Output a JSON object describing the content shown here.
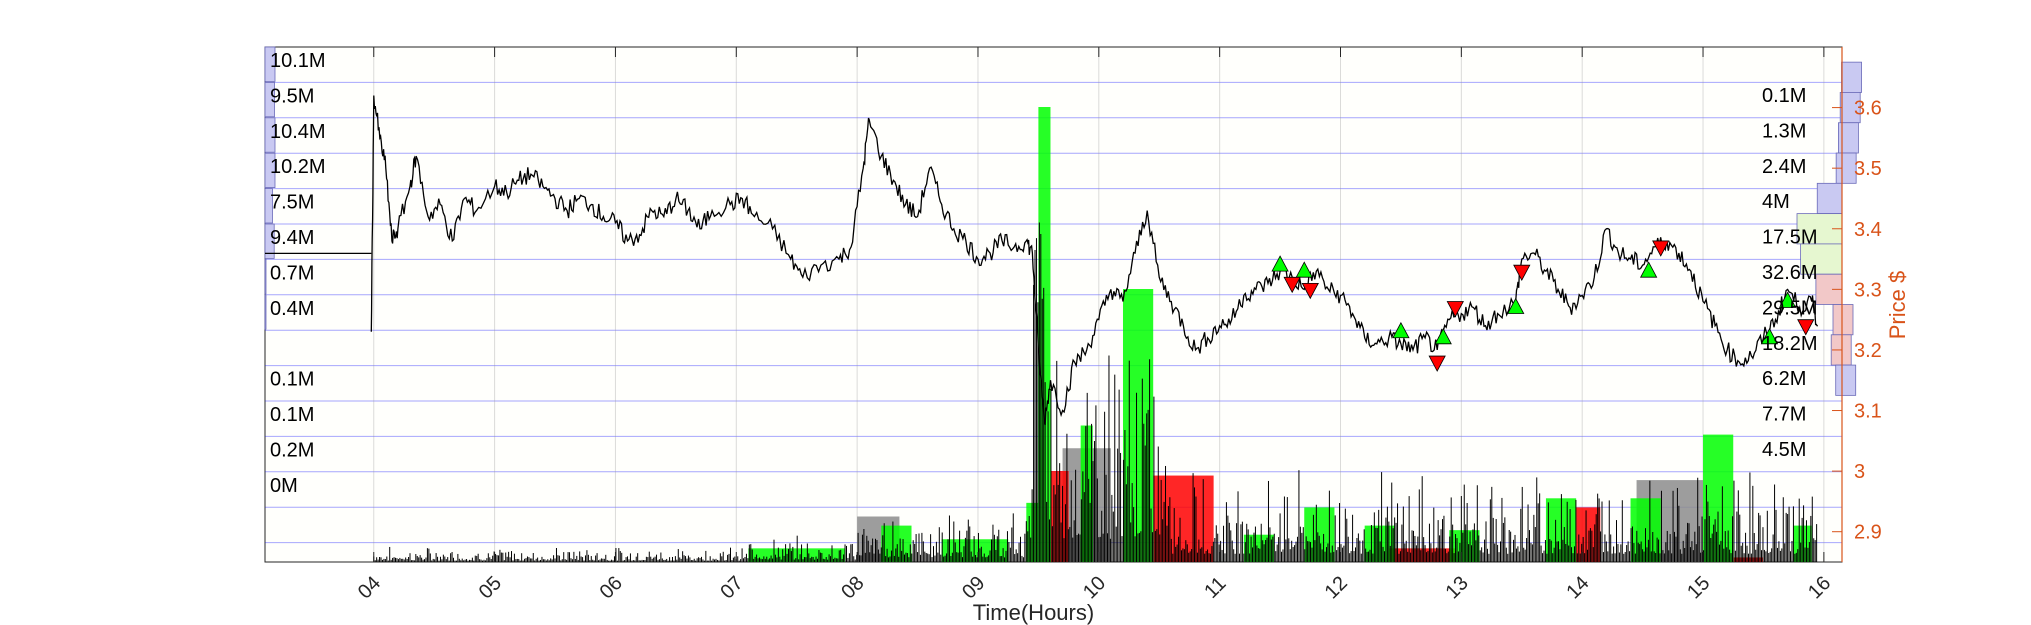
{
  "chart_data": {
    "type": "line",
    "xlabel": "Time(Hours)",
    "ylabel": "Price $",
    "x_range": [
      3.1,
      16.15
    ],
    "x_ticks": [
      "04",
      "05",
      "06",
      "07",
      "08",
      "09",
      "10",
      "11",
      "12",
      "13",
      "14",
      "15",
      "16"
    ],
    "ylim": [
      2.85,
      3.7
    ],
    "y_ticks": [
      2.9,
      3,
      3.1,
      3.2,
      3.3,
      3.4,
      3.5,
      3.6
    ],
    "grid": true,
    "colors": {
      "price": "#000000",
      "axis_right": "#d95319",
      "buy": "#00ff00",
      "sell": "#ff0000",
      "grid": "#0000ff"
    },
    "left_volume_labels": [
      "10.1M",
      "9.5M",
      "10.4M",
      "10.2M",
      "7.5M",
      "9.4M",
      "0.7M",
      "0.4M",
      "",
      "0.1M",
      "0.1M",
      "0.2M",
      "0M"
    ],
    "right_volume_labels": [
      "0.1M",
      "1.3M",
      "2.4M",
      "4M",
      "17.5M",
      "32.6M",
      "29.5M",
      "18.2M",
      "6.2M",
      "7.7M",
      "4.5M"
    ],
    "price_series": {
      "name": "Price",
      "points": [
        [
          3.98,
          3.23
        ],
        [
          4.0,
          3.62
        ],
        [
          4.05,
          3.55
        ],
        [
          4.1,
          3.5
        ],
        [
          4.15,
          3.38
        ],
        [
          4.2,
          3.4
        ],
        [
          4.3,
          3.47
        ],
        [
          4.35,
          3.52
        ],
        [
          4.45,
          3.42
        ],
        [
          4.55,
          3.44
        ],
        [
          4.65,
          3.38
        ],
        [
          4.75,
          3.45
        ],
        [
          4.85,
          3.43
        ],
        [
          5.0,
          3.47
        ],
        [
          5.1,
          3.46
        ],
        [
          5.2,
          3.48
        ],
        [
          5.3,
          3.49
        ],
        [
          5.4,
          3.47
        ],
        [
          5.5,
          3.45
        ],
        [
          5.6,
          3.43
        ],
        [
          5.7,
          3.45
        ],
        [
          5.8,
          3.44
        ],
        [
          5.9,
          3.42
        ],
        [
          6.0,
          3.41
        ],
        [
          6.1,
          3.38
        ],
        [
          6.2,
          3.39
        ],
        [
          6.3,
          3.43
        ],
        [
          6.4,
          3.42
        ],
        [
          6.5,
          3.45
        ],
        [
          6.6,
          3.43
        ],
        [
          6.7,
          3.4
        ],
        [
          6.8,
          3.43
        ],
        [
          6.95,
          3.44
        ],
        [
          7.05,
          3.45
        ],
        [
          7.15,
          3.42
        ],
        [
          7.3,
          3.4
        ],
        [
          7.45,
          3.35
        ],
        [
          7.55,
          3.32
        ],
        [
          7.7,
          3.34
        ],
        [
          7.85,
          3.35
        ],
        [
          7.95,
          3.37
        ],
        [
          8.05,
          3.5
        ],
        [
          8.1,
          3.58
        ],
        [
          8.2,
          3.52
        ],
        [
          8.3,
          3.48
        ],
        [
          8.4,
          3.44
        ],
        [
          8.5,
          3.42
        ],
        [
          8.6,
          3.5
        ],
        [
          8.7,
          3.44
        ],
        [
          8.8,
          3.4
        ],
        [
          8.9,
          3.38
        ],
        [
          9.0,
          3.35
        ],
        [
          9.1,
          3.36
        ],
        [
          9.2,
          3.38
        ],
        [
          9.3,
          3.37
        ],
        [
          9.4,
          3.38
        ],
        [
          9.45,
          3.36
        ],
        [
          9.5,
          3.2
        ],
        [
          9.55,
          3.08
        ],
        [
          9.6,
          3.15
        ],
        [
          9.7,
          3.1
        ],
        [
          9.8,
          3.18
        ],
        [
          9.9,
          3.2
        ],
        [
          10.0,
          3.25
        ],
        [
          10.1,
          3.3
        ],
        [
          10.2,
          3.28
        ],
        [
          10.3,
          3.36
        ],
        [
          10.4,
          3.43
        ],
        [
          10.5,
          3.32
        ],
        [
          10.6,
          3.28
        ],
        [
          10.7,
          3.24
        ],
        [
          10.8,
          3.2
        ],
        [
          10.9,
          3.22
        ],
        [
          11.0,
          3.24
        ],
        [
          11.1,
          3.25
        ],
        [
          11.2,
          3.29
        ],
        [
          11.3,
          3.3
        ],
        [
          11.4,
          3.31
        ],
        [
          11.5,
          3.33
        ],
        [
          11.6,
          3.32
        ],
        [
          11.7,
          3.3
        ],
        [
          11.8,
          3.33
        ],
        [
          11.9,
          3.3
        ],
        [
          12.0,
          3.29
        ],
        [
          12.1,
          3.26
        ],
        [
          12.2,
          3.22
        ],
        [
          12.3,
          3.21
        ],
        [
          12.4,
          3.22
        ],
        [
          12.5,
          3.21
        ],
        [
          12.6,
          3.2
        ],
        [
          12.7,
          3.22
        ],
        [
          12.8,
          3.2
        ],
        [
          12.9,
          3.25
        ],
        [
          13.0,
          3.26
        ],
        [
          13.1,
          3.27
        ],
        [
          13.2,
          3.24
        ],
        [
          13.3,
          3.26
        ],
        [
          13.45,
          3.28
        ],
        [
          13.5,
          3.35
        ],
        [
          13.6,
          3.36
        ],
        [
          13.7,
          3.33
        ],
        [
          13.8,
          3.3
        ],
        [
          13.9,
          3.27
        ],
        [
          14.0,
          3.29
        ],
        [
          14.1,
          3.32
        ],
        [
          14.2,
          3.4
        ],
        [
          14.3,
          3.36
        ],
        [
          14.4,
          3.35
        ],
        [
          14.5,
          3.34
        ],
        [
          14.6,
          3.37
        ],
        [
          14.7,
          3.38
        ],
        [
          14.8,
          3.36
        ],
        [
          14.9,
          3.33
        ],
        [
          15.0,
          3.28
        ],
        [
          15.1,
          3.24
        ],
        [
          15.2,
          3.2
        ],
        [
          15.3,
          3.18
        ],
        [
          15.4,
          3.19
        ],
        [
          15.5,
          3.22
        ],
        [
          15.6,
          3.25
        ],
        [
          15.7,
          3.3
        ],
        [
          15.8,
          3.27
        ],
        [
          15.9,
          3.28
        ],
        [
          15.95,
          3.24
        ]
      ]
    },
    "buy_markers": [
      [
        11.5,
        3.34
      ],
      [
        11.7,
        3.33
      ],
      [
        12.5,
        3.23
      ],
      [
        12.85,
        3.22
      ],
      [
        13.45,
        3.27
      ],
      [
        14.55,
        3.33
      ],
      [
        15.55,
        3.22
      ],
      [
        15.7,
        3.28
      ]
    ],
    "sell_markers": [
      [
        11.6,
        3.31
      ],
      [
        11.75,
        3.3
      ],
      [
        12.8,
        3.18
      ],
      [
        12.95,
        3.27
      ],
      [
        13.5,
        3.33
      ],
      [
        14.65,
        3.37
      ],
      [
        15.85,
        3.24
      ]
    ],
    "volume_bars": {
      "y_max": 100,
      "green": [
        [
          7.1,
          7.9,
          3
        ],
        [
          8.2,
          8.45,
          8
        ],
        [
          8.7,
          9.25,
          5
        ],
        [
          9.4,
          9.5,
          13
        ],
        [
          9.5,
          9.6,
          100
        ],
        [
          9.85,
          9.95,
          30
        ],
        [
          10.2,
          10.45,
          60
        ],
        [
          11.2,
          11.45,
          6
        ],
        [
          11.7,
          11.95,
          12
        ],
        [
          12.2,
          12.45,
          8
        ],
        [
          12.9,
          13.15,
          7
        ],
        [
          13.7,
          13.95,
          14
        ],
        [
          14.4,
          14.65,
          14
        ],
        [
          15.0,
          15.25,
          28
        ],
        [
          15.75,
          15.9,
          8
        ]
      ],
      "red": [
        [
          9.6,
          9.75,
          20
        ],
        [
          10.45,
          10.95,
          19
        ],
        [
          12.4,
          12.95,
          3
        ],
        [
          13.95,
          14.15,
          12
        ],
        [
          15.25,
          15.5,
          1
        ]
      ],
      "grey": [
        [
          8.0,
          8.35,
          10
        ],
        [
          9.7,
          10.1,
          25
        ],
        [
          14.45,
          15.0,
          18
        ]
      ]
    },
    "left_volume_profile": [
      [
        3.87,
        3.7,
        1.0
      ],
      [
        3.87,
        3.65,
        0.95
      ],
      [
        3.87,
        3.6,
        1.0
      ],
      [
        3.87,
        3.55,
        1.0
      ],
      [
        3.87,
        3.5,
        0.75
      ],
      [
        3.87,
        3.45,
        0.92
      ],
      [
        3.87,
        3.4,
        0.07
      ],
      [
        3.87,
        3.35,
        0.04
      ]
    ],
    "right_volume_profile": [
      [
        3.65,
        0.01
      ],
      [
        3.6,
        0.04
      ],
      [
        3.55,
        0.08
      ],
      [
        3.5,
        0.13
      ],
      [
        3.45,
        0.55
      ],
      [
        3.4,
        1.0
      ],
      [
        3.35,
        0.92
      ],
      [
        3.3,
        0.58
      ],
      [
        3.25,
        0.2
      ],
      [
        3.2,
        0.24
      ],
      [
        3.15,
        0.14
      ]
    ]
  }
}
